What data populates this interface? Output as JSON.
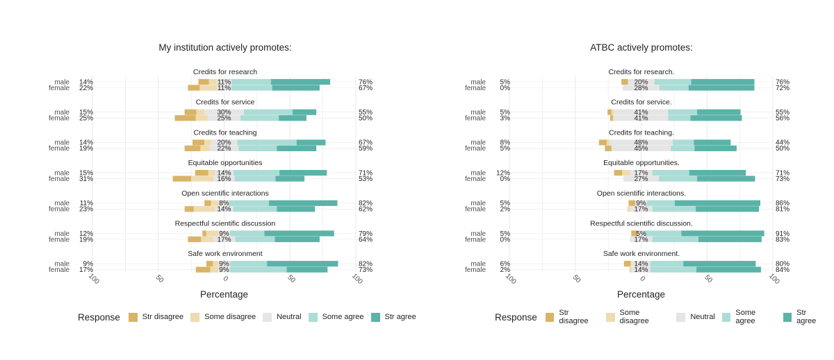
{
  "colors": {
    "str_disagree": "#d9b466",
    "some_disagree": "#eedcb0",
    "neutral": "#e5e5e5",
    "some_agree": "#acdcd6",
    "str_agree": "#5bb3a8",
    "grid": "#e8e8e8",
    "text": "#222222",
    "muted": "#4d4d4d"
  },
  "legend": {
    "title": "Response",
    "items": [
      {
        "label": "Str disagree",
        "color_key": "str_disagree"
      },
      {
        "label": "Some disagree",
        "color_key": "some_disagree"
      },
      {
        "label": "Neutral",
        "color_key": "neutral"
      },
      {
        "label": "Some agree",
        "color_key": "some_agree"
      },
      {
        "label": "Str agree",
        "color_key": "str_agree"
      }
    ]
  },
  "chart_data": [
    {
      "type": "bar",
      "orientation": "horizontal-diverging",
      "title": "My institution actively promotes:",
      "xlabel": "Percentage",
      "xlim": [
        -100,
        100
      ],
      "xticks": [
        "100",
        "50",
        "0",
        "50",
        "100"
      ],
      "grid": true,
      "legend_position": "bottom",
      "response_levels": [
        "Str disagree",
        "Some disagree",
        "Neutral",
        "Some agree",
        "Str agree"
      ],
      "facets": [
        {
          "label": "Credits for research",
          "rows": [
            {
              "group": "male",
              "left_pct": "14%",
              "neutral_pct": "11%",
              "right_pct": "76%",
              "values": [
                8,
                6,
                11,
                30,
                45
              ]
            },
            {
              "group": "female",
              "left_pct": "22%",
              "neutral_pct": "11%",
              "right_pct": "67%",
              "values": [
                9,
                13,
                11,
                31,
                36
              ]
            }
          ]
        },
        {
          "label": "Credits for service",
          "rows": [
            {
              "group": "male",
              "left_pct": "15%",
              "neutral_pct": "30%",
              "right_pct": "55%",
              "values": [
                9,
                6,
                30,
                37,
                18
              ]
            },
            {
              "group": "female",
              "left_pct": "25%",
              "neutral_pct": "25%",
              "right_pct": "50%",
              "values": [
                16,
                9,
                25,
                29,
                21
              ]
            }
          ]
        },
        {
          "label": "Credits for teaching",
          "rows": [
            {
              "group": "male",
              "left_pct": "14%",
              "neutral_pct": "20%",
              "right_pct": "67%",
              "values": [
                9,
                5,
                20,
                45,
                22
              ]
            },
            {
              "group": "female",
              "left_pct": "19%",
              "neutral_pct": "22%",
              "right_pct": "59%",
              "values": [
                12,
                7,
                22,
                29,
                30
              ]
            }
          ]
        },
        {
          "label": "Equitable opportunities",
          "rows": [
            {
              "group": "male",
              "left_pct": "15%",
              "neutral_pct": "14%",
              "right_pct": "71%",
              "values": [
                10,
                5,
                14,
                35,
                36
              ]
            },
            {
              "group": "female",
              "left_pct": "31%",
              "neutral_pct": "16%",
              "right_pct": "53%",
              "values": [
                14,
                17,
                16,
                31,
                22
              ]
            }
          ]
        },
        {
          "label": "Open scientific interactions",
          "rows": [
            {
              "group": "male",
              "left_pct": "11%",
              "neutral_pct": "8%",
              "right_pct": "82%",
              "values": [
                5,
                6,
                8,
                30,
                52
              ]
            },
            {
              "group": "female",
              "left_pct": "23%",
              "neutral_pct": "14%",
              "right_pct": "62%",
              "values": [
                7,
                16,
                14,
                33,
                29
              ]
            }
          ]
        },
        {
          "label": "Respectful scientific discussion",
          "rows": [
            {
              "group": "male",
              "left_pct": "12%",
              "neutral_pct": "9%",
              "right_pct": "79%",
              "values": [
                3,
                9,
                9,
                26,
                53
              ]
            },
            {
              "group": "female",
              "left_pct": "19%",
              "neutral_pct": "17%",
              "right_pct": "64%",
              "values": [
                10,
                9,
                17,
                30,
                34
              ]
            }
          ]
        },
        {
          "label": "Safe work environment",
          "rows": [
            {
              "group": "male",
              "left_pct": "9%",
              "neutral_pct": "9%",
              "right_pct": "82%",
              "values": [
                5,
                4,
                9,
                28,
                54
              ]
            },
            {
              "group": "female",
              "left_pct": "17%",
              "neutral_pct": "9%",
              "right_pct": "73%",
              "values": [
                11,
                6,
                9,
                43,
                31
              ]
            }
          ]
        }
      ]
    },
    {
      "type": "bar",
      "orientation": "horizontal-diverging",
      "title": "ATBC actively promotes:",
      "xlabel": "Percentage",
      "xlim": [
        -100,
        100
      ],
      "xticks": [
        "100",
        "50",
        "0",
        "50",
        "100"
      ],
      "grid": true,
      "legend_position": "bottom",
      "response_levels": [
        "Str disagree",
        "Some disagree",
        "Neutral",
        "Some agree",
        "Str agree"
      ],
      "facets": [
        {
          "label": "Credits for research.",
          "rows": [
            {
              "group": "male",
              "left_pct": "5%",
              "neutral_pct": "20%",
              "right_pct": "76%",
              "values": [
                5,
                0,
                20,
                28,
                48
              ]
            },
            {
              "group": "female",
              "left_pct": "0%",
              "neutral_pct": "28%",
              "right_pct": "72%",
              "values": [
                0,
                0,
                28,
                22,
                50
              ]
            }
          ]
        },
        {
          "label": "Credits for service.",
          "rows": [
            {
              "group": "male",
              "left_pct": "5%",
              "neutral_pct": "41%",
              "right_pct": "55%",
              "values": [
                3,
                2,
                41,
                22,
                33
              ]
            },
            {
              "group": "female",
              "left_pct": "3%",
              "neutral_pct": "41%",
              "right_pct": "56%",
              "values": [
                2,
                1,
                41,
                17,
                39
              ]
            }
          ]
        },
        {
          "label": "Credits for teaching.",
          "rows": [
            {
              "group": "male",
              "left_pct": "8%",
              "neutral_pct": "48%",
              "right_pct": "44%",
              "values": [
                6,
                2,
                48,
                16,
                28
              ]
            },
            {
              "group": "female",
              "left_pct": "5%",
              "neutral_pct": "45%",
              "right_pct": "50%",
              "values": [
                5,
                0,
                45,
                18,
                32
              ]
            }
          ]
        },
        {
          "label": "Equitable opportunities.",
          "rows": [
            {
              "group": "male",
              "left_pct": "12%",
              "neutral_pct": "17%",
              "right_pct": "71%",
              "values": [
                6,
                6,
                17,
                28,
                43
              ]
            },
            {
              "group": "female",
              "left_pct": "0%",
              "neutral_pct": "27%",
              "right_pct": "73%",
              "values": [
                0,
                0,
                27,
                29,
                44
              ]
            }
          ]
        },
        {
          "label": "Open scientific interactions.",
          "rows": [
            {
              "group": "male",
              "left_pct": "5%",
              "neutral_pct": "9%",
              "right_pct": "86%",
              "values": [
                5,
                0,
                9,
                21,
                65
              ]
            },
            {
              "group": "female",
              "left_pct": "2%",
              "neutral_pct": "17%",
              "right_pct": "81%",
              "values": [
                0,
                2,
                17,
                33,
                48
              ]
            }
          ]
        },
        {
          "label": "Respectful scientific discussion.",
          "rows": [
            {
              "group": "male",
              "left_pct": "5%",
              "neutral_pct": "5%",
              "right_pct": "91%",
              "values": [
                5,
                0,
                5,
                28,
                63
              ]
            },
            {
              "group": "female",
              "left_pct": "0%",
              "neutral_pct": "17%",
              "right_pct": "83%",
              "values": [
                0,
                0,
                17,
                35,
                48
              ]
            }
          ]
        },
        {
          "label": "Safe work environment.",
          "rows": [
            {
              "group": "male",
              "left_pct": "6%",
              "neutral_pct": "14%",
              "right_pct": "80%",
              "values": [
                5,
                1,
                14,
                25,
                55
              ]
            },
            {
              "group": "female",
              "left_pct": "2%",
              "neutral_pct": "14%",
              "right_pct": "84%",
              "values": [
                0,
                2,
                14,
                35,
                49
              ]
            }
          ]
        }
      ]
    }
  ]
}
